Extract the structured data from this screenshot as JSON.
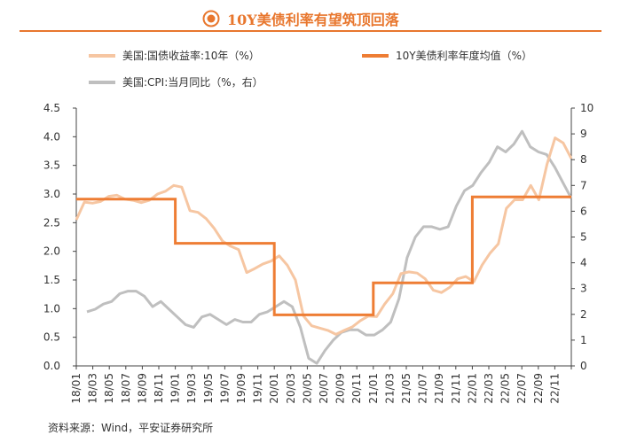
{
  "title": "10Y美债利率有望筑顶回落",
  "source": "资料来源：Wind，平安证券研究所",
  "colors": {
    "accent": "#e8772e",
    "yield_series": "#f6c6a2",
    "avg_series": "#ee7d34",
    "cpi_series": "#bfbfbf",
    "axis": "#444444"
  },
  "chart_data": {
    "type": "line",
    "legend_position": "top",
    "grid": false,
    "y_left": {
      "range": [
        0,
        4.5
      ],
      "ticks": [
        "0.0",
        "0.5",
        "1.0",
        "1.5",
        "2.0",
        "2.5",
        "3.0",
        "3.5",
        "4.0",
        "4.5"
      ]
    },
    "y_right": {
      "range": [
        0,
        10
      ],
      "ticks": [
        "0",
        "1",
        "2",
        "3",
        "4",
        "5",
        "6",
        "7",
        "8",
        "9",
        "10"
      ]
    },
    "x_labels": [
      "18/01",
      "18/03",
      "18/05",
      "18/07",
      "18/09",
      "18/11",
      "19/01",
      "19/03",
      "19/05",
      "19/07",
      "19/09",
      "19/11",
      "20/01",
      "20/03",
      "20/05",
      "20/07",
      "20/09",
      "20/11",
      "21/01",
      "21/03",
      "21/05",
      "21/07",
      "21/09",
      "21/11",
      "22/01",
      "22/03",
      "22/05",
      "22/07",
      "22/09",
      "22/11"
    ],
    "series": [
      {
        "name": "美国:国债收益率:10年（%）",
        "axis": "left",
        "values": [
          2.55,
          2.86,
          2.84,
          2.87,
          2.96,
          2.98,
          2.91,
          2.89,
          2.85,
          2.89,
          3.0,
          3.05,
          3.15,
          3.12,
          2.71,
          2.68,
          2.57,
          2.4,
          2.18,
          2.09,
          2.03,
          1.63,
          1.7,
          1.78,
          1.83,
          1.92,
          1.76,
          1.5,
          0.87,
          0.7,
          0.66,
          0.62,
          0.55,
          0.62,
          0.68,
          0.79,
          0.87,
          0.86,
          1.08,
          1.26,
          1.61,
          1.64,
          1.62,
          1.52,
          1.32,
          1.28,
          1.37,
          1.52,
          1.56,
          1.47,
          1.76,
          1.97,
          2.13,
          2.75,
          2.9,
          2.9,
          3.15,
          2.9,
          3.52,
          3.98,
          3.89,
          3.62
        ]
      },
      {
        "name": "10Y美债利率年度均值（%）",
        "axis": "left",
        "step_values": [
          {
            "year": "2018",
            "value": 2.91
          },
          {
            "year": "2019",
            "value": 2.14
          },
          {
            "year": "2020",
            "value": 0.89
          },
          {
            "year": "2021",
            "value": 1.45
          },
          {
            "year": "2022",
            "value": 2.95
          }
        ]
      },
      {
        "name": "美国:CPI:当月同比（%，右）",
        "axis": "right",
        "values": [
          2.1,
          2.2,
          2.4,
          2.5,
          2.8,
          2.9,
          2.9,
          2.7,
          2.3,
          2.5,
          2.2,
          1.9,
          1.6,
          1.5,
          1.9,
          2.0,
          1.8,
          1.6,
          1.8,
          1.7,
          1.7,
          2.0,
          2.1,
          2.3,
          2.5,
          2.3,
          1.5,
          0.3,
          0.1,
          0.6,
          1.0,
          1.3,
          1.4,
          1.4,
          1.2,
          1.2,
          1.4,
          1.7,
          2.6,
          4.2,
          5.0,
          5.4,
          5.4,
          5.3,
          5.4,
          6.2,
          6.8,
          7.0,
          7.5,
          7.9,
          8.5,
          8.3,
          8.6,
          9.1,
          8.5,
          8.3,
          8.2,
          7.7,
          7.1,
          6.5
        ]
      }
    ]
  }
}
